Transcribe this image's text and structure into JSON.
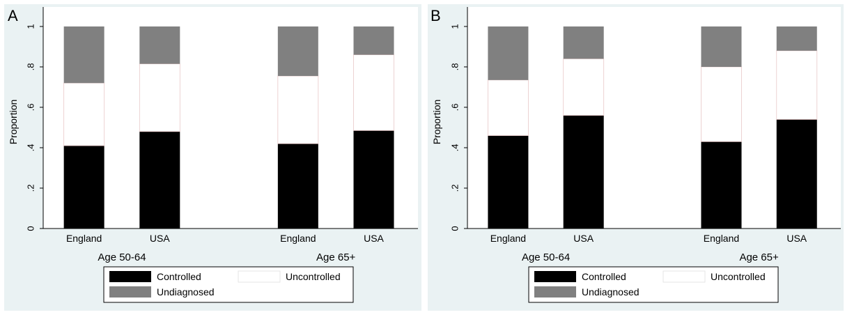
{
  "chart_data": [
    {
      "type": "bar",
      "stacked": true,
      "panel_label": "A",
      "ylabel": "Proportion",
      "ylim": [
        0,
        1
      ],
      "yticks": [
        "0",
        ".2",
        ".4",
        ".6",
        ".8",
        "1"
      ],
      "categories": [
        "England",
        "USA",
        "England",
        "USA"
      ],
      "groups": [
        {
          "label": "Age 50-64",
          "categories": [
            "England",
            "USA"
          ]
        },
        {
          "label": "Age 65+",
          "categories": [
            "England",
            "USA"
          ]
        }
      ],
      "series": [
        {
          "name": "Controlled",
          "color": "#000000",
          "values": [
            0.41,
            0.48,
            0.42,
            0.485
          ]
        },
        {
          "name": "Uncontrolled",
          "color": "#ffffff",
          "values": [
            0.31,
            0.335,
            0.335,
            0.375
          ]
        },
        {
          "name": "Undiagnosed",
          "color": "#808080",
          "values": [
            0.28,
            0.185,
            0.245,
            0.14
          ]
        }
      ],
      "legend": {
        "placement": "bottom",
        "entries": [
          "Controlled",
          "Uncontrolled",
          "Undiagnosed"
        ]
      },
      "grid": false
    },
    {
      "type": "bar",
      "stacked": true,
      "panel_label": "B",
      "ylabel": "Proportion",
      "ylim": [
        0,
        1
      ],
      "yticks": [
        "0",
        ".2",
        ".4",
        ".6",
        ".8",
        "1"
      ],
      "categories": [
        "England",
        "USA",
        "England",
        "USA"
      ],
      "groups": [
        {
          "label": "Age 50-64",
          "categories": [
            "England",
            "USA"
          ]
        },
        {
          "label": "Age 65+",
          "categories": [
            "England",
            "USA"
          ]
        }
      ],
      "series": [
        {
          "name": "Controlled",
          "color": "#000000",
          "values": [
            0.46,
            0.56,
            0.43,
            0.54
          ]
        },
        {
          "name": "Uncontrolled",
          "color": "#ffffff",
          "values": [
            0.275,
            0.28,
            0.37,
            0.34
          ]
        },
        {
          "name": "Undiagnosed",
          "color": "#808080",
          "values": [
            0.265,
            0.16,
            0.2,
            0.12
          ]
        }
      ],
      "legend": {
        "placement": "bottom",
        "entries": [
          "Controlled",
          "Uncontrolled",
          "Undiagnosed"
        ]
      },
      "grid": false
    }
  ]
}
